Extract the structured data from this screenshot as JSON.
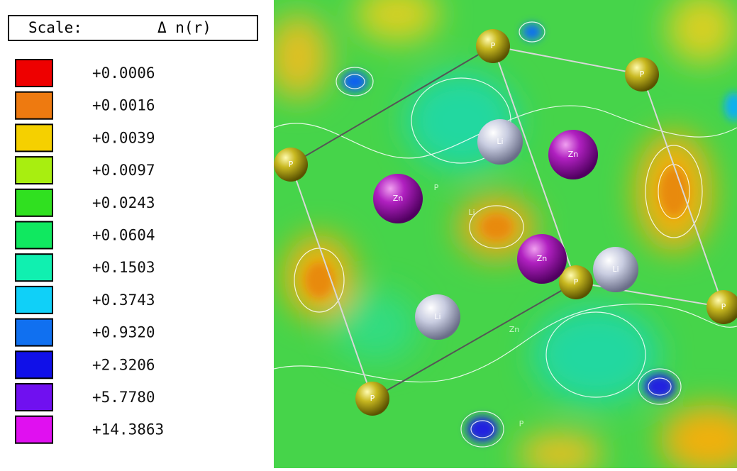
{
  "legend": {
    "title": "Scale:",
    "quantity": "Δ n(r)",
    "items": [
      {
        "color": "#ee0000",
        "label": "+0.0006"
      },
      {
        "color": "#ee7a10",
        "label": "+0.0016"
      },
      {
        "color": "#f5d000",
        "label": "+0.0039"
      },
      {
        "color": "#a8ee10",
        "label": "+0.0097"
      },
      {
        "color": "#30e020",
        "label": "+0.0243"
      },
      {
        "color": "#10e860",
        "label": "+0.0604"
      },
      {
        "color": "#10f0b0",
        "label": "+0.1503"
      },
      {
        "color": "#10d0f8",
        "label": "+0.3743"
      },
      {
        "color": "#1070f0",
        "label": "+0.9320"
      },
      {
        "color": "#1010e8",
        "label": "+2.3206"
      },
      {
        "color": "#7010f0",
        "label": "+5.7780"
      },
      {
        "color": "#e010f0",
        "label": "+14.3863"
      }
    ]
  },
  "map": {
    "atoms": [
      {
        "label": "P"
      },
      {
        "label": "P"
      },
      {
        "label": "P"
      },
      {
        "label": "P"
      },
      {
        "label": "P"
      },
      {
        "label": "P"
      },
      {
        "label": "Zn"
      },
      {
        "label": "Zn"
      },
      {
        "label": "Zn"
      },
      {
        "label": "Li"
      },
      {
        "label": "Li"
      },
      {
        "label": "Li"
      }
    ],
    "ghost_labels": [
      {
        "label": "P"
      },
      {
        "label": "Li"
      },
      {
        "label": "Zn"
      },
      {
        "label": "P"
      }
    ]
  }
}
